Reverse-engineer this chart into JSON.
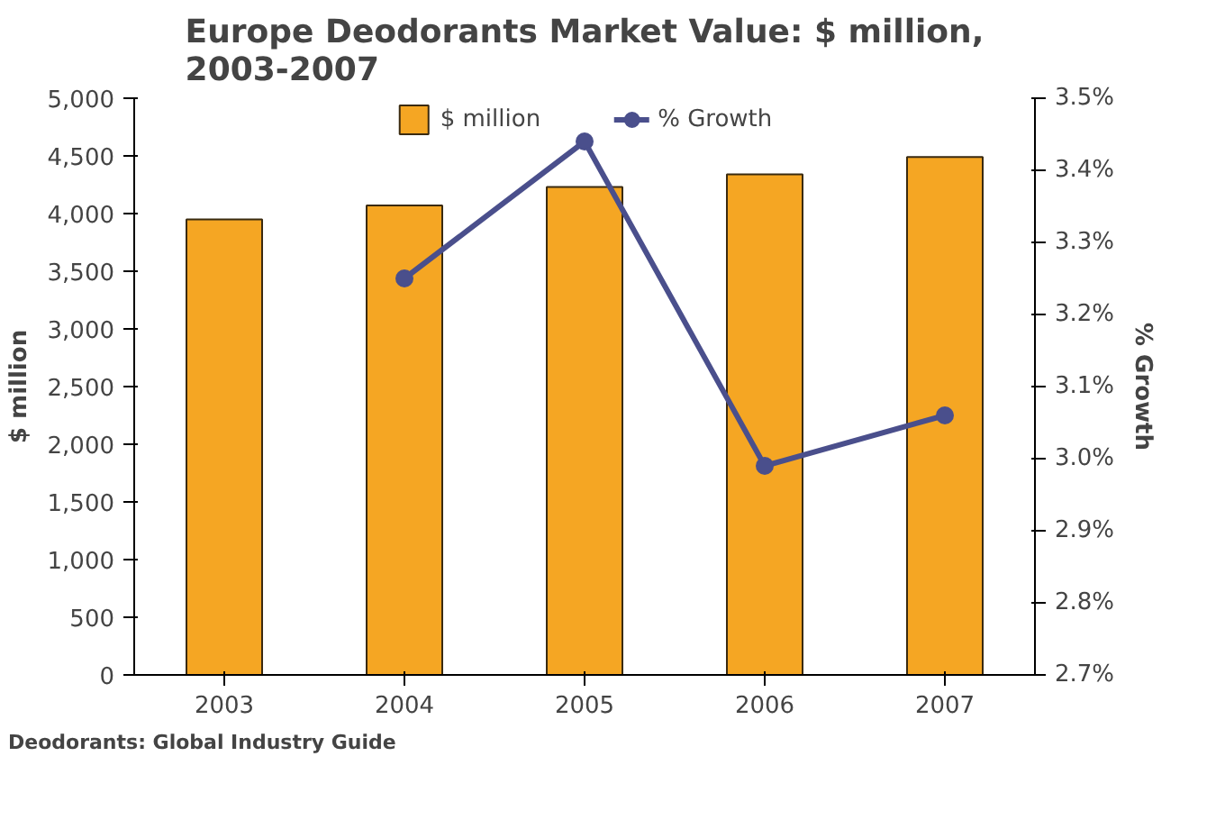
{
  "chart_data": {
    "type": "bar",
    "title": "Europe Deodorants Market Value: $ million,\n2003-2007",
    "categories": [
      "2003",
      "2004",
      "2005",
      "2006",
      "2007"
    ],
    "series": [
      {
        "name": "$ million",
        "color": "#f5a623",
        "values": [
          3950,
          4070,
          4230,
          4340,
          4490
        ]
      },
      {
        "name": "% Growth",
        "type": "line",
        "axis": "y2",
        "color": "#4a4f8c",
        "marker": "circle",
        "values": [
          null,
          3.25,
          3.44,
          2.99,
          3.06
        ]
      }
    ],
    "ylabel": "$ million",
    "y2label": "% Growth",
    "ylim": [
      0,
      5000
    ],
    "yticks": [
      {
        "value": 0,
        "label": "0"
      },
      {
        "value": 500,
        "label": "500"
      },
      {
        "value": 1000,
        "label": "1,000"
      },
      {
        "value": 1500,
        "label": "1,500"
      },
      {
        "value": 2000,
        "label": "2,000"
      },
      {
        "value": 2500,
        "label": "2,500"
      },
      {
        "value": 3000,
        "label": "3,000"
      },
      {
        "value": 3500,
        "label": "3,500"
      },
      {
        "value": 4000,
        "label": "4,000"
      },
      {
        "value": 4500,
        "label": "4,500"
      },
      {
        "value": 5000,
        "label": "5,000"
      }
    ],
    "y2lim": [
      2.7,
      3.5
    ],
    "y2ticks": [
      {
        "value": 2.7,
        "label": "2.7%"
      },
      {
        "value": 2.8,
        "label": "2.8%"
      },
      {
        "value": 2.9,
        "label": "2.9%"
      },
      {
        "value": 3.0,
        "label": "3.0%"
      },
      {
        "value": 3.1,
        "label": "3.1%"
      },
      {
        "value": 3.2,
        "label": "3.2%"
      },
      {
        "value": 3.3,
        "label": "3.3%"
      },
      {
        "value": 3.4,
        "label": "3.4%"
      },
      {
        "value": 3.5,
        "label": "3.5%"
      }
    ],
    "legend": "top",
    "grid": false,
    "annotations": [
      "Deodorants: Global Industry Guide"
    ]
  }
}
